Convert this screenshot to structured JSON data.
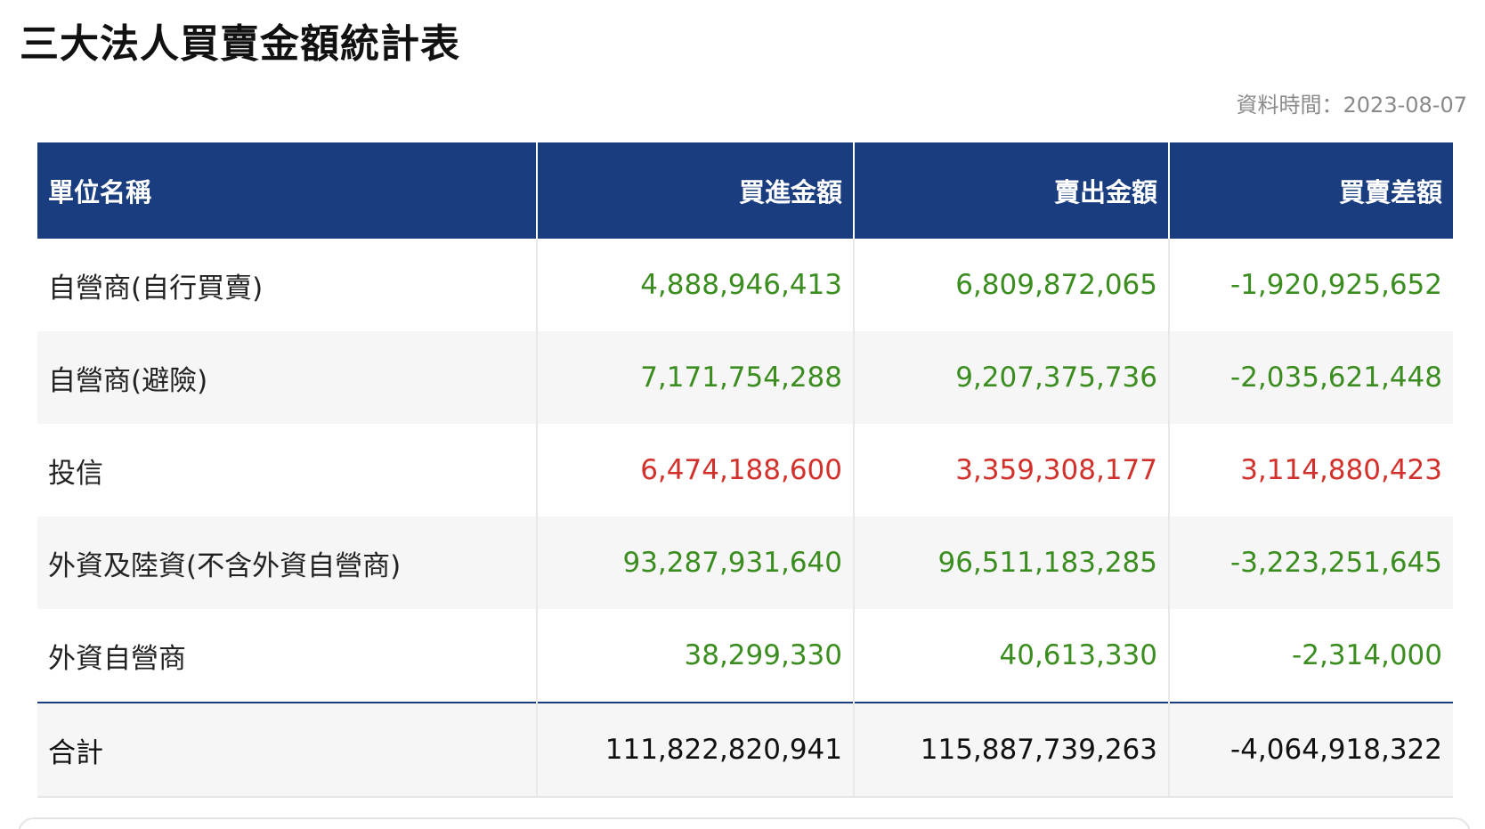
{
  "page": {
    "title": "三大法人買賣金額統計表",
    "data_time": "資料時間：2023-08-07"
  },
  "table": {
    "headers": [
      "單位名稱",
      "買進金額",
      "賣出金額",
      "買賣差額"
    ],
    "rows": [
      {
        "name": "自營商(自行買賣)",
        "buy": "4,888,946,413",
        "sell": "6,809,872,065",
        "diff": "-1,920,925,652"
      },
      {
        "name": "自營商(避險)",
        "buy": "7,171,754,288",
        "sell": "9,207,375,736",
        "diff": "-2,035,621,448"
      },
      {
        "name": "投信",
        "buy": "6,474,188,600",
        "sell": "3,359,308,177",
        "diff": "3,114,880,423"
      },
      {
        "name": "外資及陸資(不含外資自營商)",
        "buy": "93,287,931,640",
        "sell": "96,511,183,285",
        "diff": "-3,223,251,645"
      },
      {
        "name": "外資自營商",
        "buy": "38,299,330",
        "sell": "40,613,330",
        "diff": "-2,314,000"
      }
    ],
    "total": {
      "name": "合計",
      "buy": "111,822,820,941",
      "sell": "115,887,739,263",
      "diff": "-4,064,918,322"
    }
  },
  "colors": {
    "header_bg": "#1a3d80",
    "negative": "#3b8d1f",
    "positive": "#d2302b"
  }
}
